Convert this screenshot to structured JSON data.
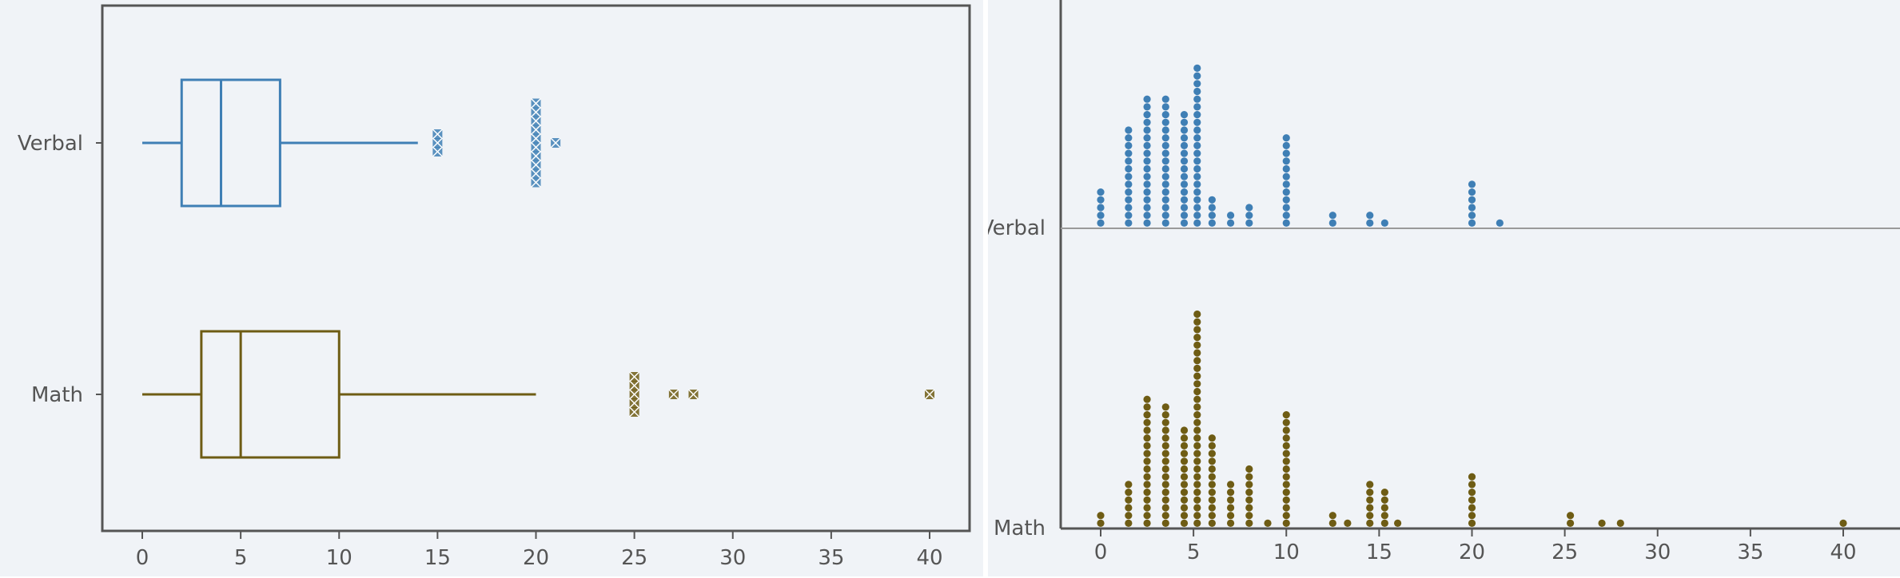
{
  "colors": {
    "verbal": "#3f7fb5",
    "math": "#6e5c14",
    "axis": "#555555",
    "background": "#f0f3f7"
  },
  "chart_data": [
    {
      "type": "box",
      "categories": [
        "Verbal",
        "Math"
      ],
      "x_ticks": [
        "0",
        "5",
        "10",
        "15",
        "20",
        "25",
        "30",
        "35",
        "40"
      ],
      "xlim": [
        0,
        40
      ],
      "series": [
        {
          "category": "Verbal",
          "color": "#3f7fb5",
          "whisker_low": 0,
          "q1": 2,
          "median": 4,
          "q3": 7,
          "whisker_high": 14,
          "outliers": [
            {
              "x": 15,
              "count": 3
            },
            {
              "x": 20,
              "count": 10
            },
            {
              "x": 21,
              "count": 1
            }
          ]
        },
        {
          "category": "Math",
          "color": "#6e5c14",
          "whisker_low": 0,
          "q1": 3,
          "median": 5,
          "q3": 10,
          "whisker_high": 20,
          "outliers": [
            {
              "x": 25,
              "count": 5
            },
            {
              "x": 27,
              "count": 1
            },
            {
              "x": 28,
              "count": 1
            },
            {
              "x": 40,
              "count": 1
            }
          ]
        }
      ],
      "grid": false
    },
    {
      "type": "dot",
      "categories": [
        "Verbal",
        "Math"
      ],
      "x_ticks": [
        "0",
        "5",
        "10",
        "15",
        "20",
        "25",
        "30",
        "35",
        "40"
      ],
      "xlim": [
        0,
        40
      ],
      "series": [
        {
          "category": "Verbal",
          "color": "#3f7fb5",
          "x": [
            0,
            1.5,
            2.5,
            3.5,
            4.5,
            5.2,
            6,
            7,
            8,
            10,
            12.5,
            14.5,
            15.3,
            20,
            21.5
          ],
          "counts": [
            5,
            13,
            17,
            17,
            15,
            21,
            4,
            2,
            3,
            12,
            2,
            2,
            1,
            6,
            1
          ]
        },
        {
          "category": "Math",
          "color": "#6e5c14",
          "x": [
            0,
            1.5,
            2.5,
            3.5,
            4.5,
            5.2,
            6,
            7,
            8,
            9,
            10,
            12.5,
            13.3,
            14.5,
            15.3,
            16,
            20,
            25.3,
            27,
            28,
            40
          ],
          "counts": [
            2,
            6,
            17,
            16,
            13,
            28,
            12,
            6,
            8,
            1,
            15,
            2,
            1,
            6,
            5,
            1,
            7,
            2,
            1,
            1,
            1
          ]
        }
      ],
      "grid": false
    }
  ]
}
